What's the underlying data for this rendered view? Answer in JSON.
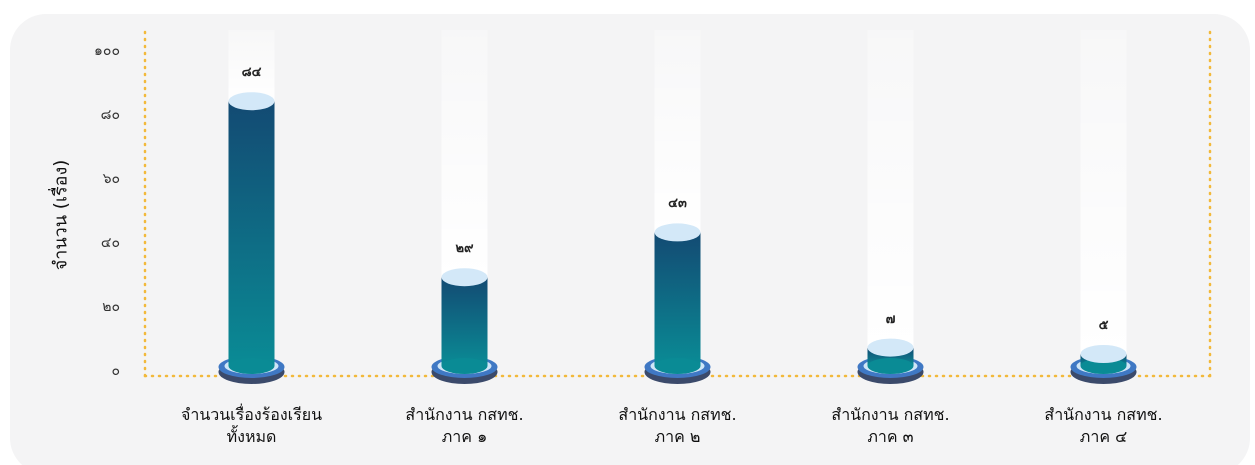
{
  "chart_data": {
    "type": "bar",
    "y_label": "จำนวน (เรื่อง)",
    "categories": [
      "จำนวนเรื่องร้องเรียน\nทั้งหมด",
      "สำนักงาน กสทช.\nภาค ๑",
      "สำนักงาน กสทช.\nภาค ๒",
      "สำนักงาน กสทช.\nภาค ๓",
      "สำนักงาน กสทช.\nภาค ๔"
    ],
    "values": [
      84,
      29,
      43,
      7,
      5
    ],
    "value_labels": [
      "๘๔",
      "๒๙",
      "๔๓",
      "๗",
      "๕"
    ],
    "ylim": [
      0,
      100
    ],
    "yticks": [
      {
        "value": 0,
        "label": "๐"
      },
      {
        "value": 20,
        "label": "๒๐"
      },
      {
        "value": 40,
        "label": "๔๐"
      },
      {
        "value": 60,
        "label": "๖๐"
      },
      {
        "value": 80,
        "label": "๘๐"
      },
      {
        "value": 100,
        "label": "๑๐๐"
      }
    ],
    "color_top": "#134a73",
    "color_bottom": "#0a8b95"
  }
}
